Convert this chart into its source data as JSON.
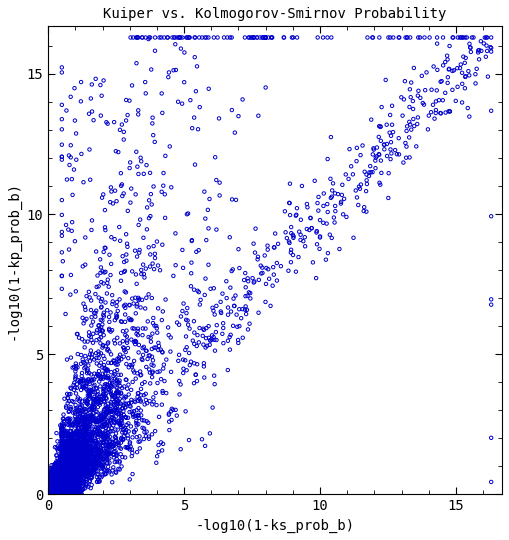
{
  "title": "Kuiper vs. Kolmogorov-Smirnov Probability",
  "xlabel": "-log10(1-ks_prob_b)",
  "ylabel": "-log10(1-kp_prob_b)",
  "xlim": [
    0,
    16.7
  ],
  "ylim": [
    0,
    16.7
  ],
  "xticks": [
    0,
    5,
    10,
    15
  ],
  "yticks": [
    0,
    5,
    10,
    15
  ],
  "marker_color": "#0000CD",
  "marker_facecolor": "none",
  "linewidth": 0.7,
  "seed": 12345,
  "cap_value": 16.3,
  "background": "#ffffff"
}
